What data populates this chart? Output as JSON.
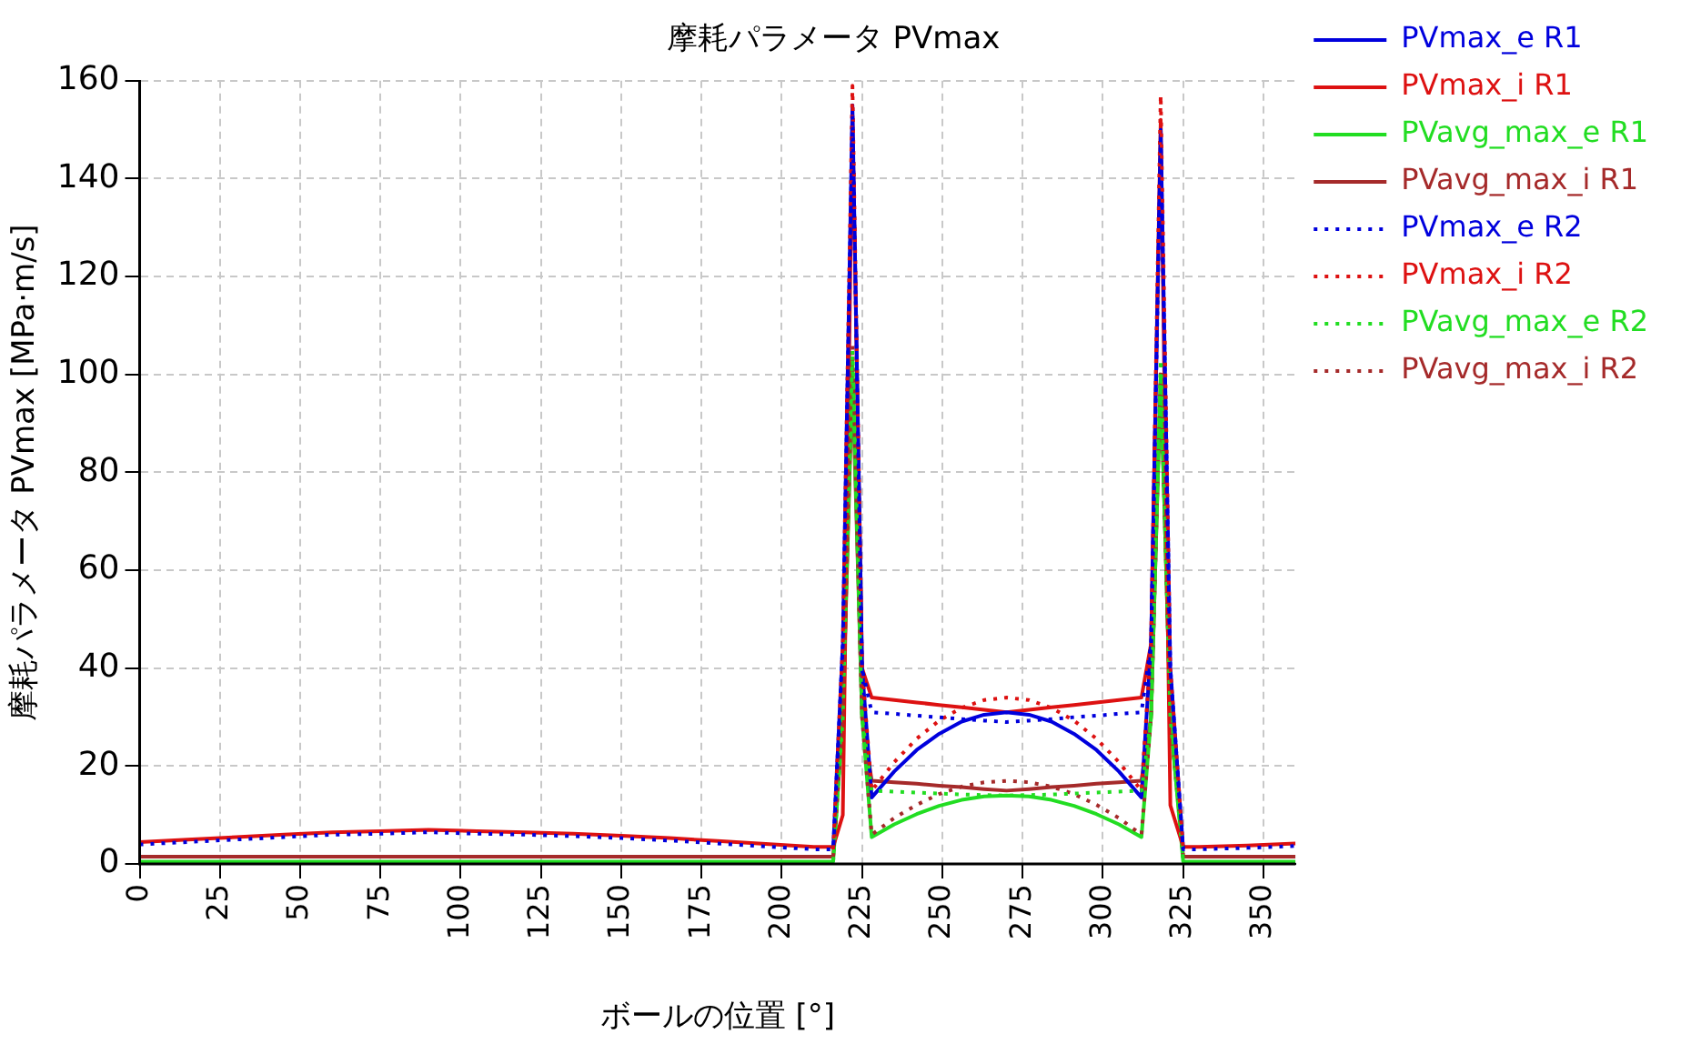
{
  "chart_data": {
    "type": "line",
    "title": "摩耗パラメータ PVmax",
    "xlabel": "ボールの位置 [°]",
    "ylabel": "摩耗パラメータ PVmax [MPa·m/s]",
    "x": [
      0,
      15,
      30,
      45,
      60,
      75,
      90,
      105,
      120,
      135,
      150,
      165,
      180,
      195,
      210,
      216,
      219,
      222,
      225,
      228,
      235,
      242,
      249,
      256,
      263,
      270,
      277,
      284,
      291,
      298,
      305,
      312,
      315,
      318,
      321,
      325,
      330,
      345,
      360
    ],
    "xlim": [
      0,
      360
    ],
    "xticks": [
      0,
      25,
      50,
      75,
      100,
      125,
      150,
      175,
      200,
      225,
      250,
      275,
      300,
      325,
      350
    ],
    "ylim": [
      0,
      160
    ],
    "yticks": [
      0,
      20,
      40,
      60,
      80,
      100,
      120,
      140,
      160
    ],
    "grid": true,
    "legend": "top right",
    "marker": "none",
    "series": [
      {
        "name": "PVmax_e R1",
        "color": "#0000dd",
        "line_style": "solid",
        "values": [
          null,
          null,
          null,
          null,
          null,
          null,
          null,
          null,
          null,
          null,
          null,
          null,
          null,
          null,
          null,
          3,
          45,
          155,
          40,
          13.6,
          18.9,
          23.3,
          26.6,
          29.1,
          30.5,
          31,
          30.5,
          29.1,
          26.6,
          23.3,
          18.9,
          13.6,
          45,
          150,
          40,
          3,
          null,
          null,
          null
        ]
      },
      {
        "name": "PVmax_i R1",
        "color": "#dd1111",
        "line_style": "solid",
        "values": [
          4.5,
          5,
          5.5,
          6,
          6.5,
          6.7,
          7,
          6.7,
          6.5,
          6.2,
          5.8,
          5.3,
          4.7,
          4.1,
          3.5,
          3.5,
          10,
          153,
          40,
          34,
          33.5,
          33,
          32.5,
          32,
          31.5,
          31,
          31.5,
          32,
          32.5,
          33,
          33.5,
          34,
          45,
          152,
          12,
          3.5,
          3.5,
          3.8,
          4.2
        ]
      },
      {
        "name": "PVavg_max_e R1",
        "color": "#22dd22",
        "line_style": "solid",
        "values": [
          0.5,
          0.5,
          0.5,
          0.5,
          0.5,
          0.5,
          0.5,
          0.5,
          0.5,
          0.5,
          0.5,
          0.5,
          0.5,
          0.5,
          0.5,
          0.5,
          30,
          103,
          30,
          5.5,
          8.1,
          10.2,
          11.9,
          13.1,
          13.8,
          14,
          13.8,
          13.1,
          11.9,
          10.2,
          8.1,
          5.5,
          30,
          100,
          30,
          0.5,
          0.5,
          0.5,
          0.5
        ]
      },
      {
        "name": "PVavg_max_i R1",
        "color": "#a52a2a",
        "line_style": "solid",
        "values": [
          1.5,
          1.5,
          1.5,
          1.5,
          1.5,
          1.5,
          1.5,
          1.5,
          1.5,
          1.5,
          1.5,
          1.5,
          1.5,
          1.5,
          1.5,
          1.5,
          30,
          100,
          30,
          17,
          16.7,
          16.4,
          16,
          15.7,
          15.3,
          15,
          15.3,
          15.7,
          16,
          16.4,
          16.7,
          17,
          30,
          100,
          30,
          1.5,
          1.5,
          1.5,
          1.5
        ]
      },
      {
        "name": "PVmax_e R2",
        "color": "#0000dd",
        "line_style": "dotted",
        "values": [
          4,
          4.5,
          5,
          5.5,
          6,
          6.2,
          6.5,
          6.2,
          6,
          5.7,
          5.3,
          4.8,
          4.2,
          3.6,
          3,
          3,
          45,
          153,
          40,
          31,
          30.7,
          30.3,
          30,
          29.6,
          29.3,
          29,
          29.3,
          29.6,
          30,
          30.3,
          30.7,
          31,
          45,
          148,
          40,
          3,
          3,
          3.3,
          3.7
        ]
      },
      {
        "name": "PVmax_i R2",
        "color": "#dd1111",
        "line_style": "dotted",
        "values": [
          null,
          null,
          null,
          null,
          null,
          null,
          null,
          null,
          null,
          null,
          null,
          null,
          null,
          null,
          null,
          3,
          45,
          159,
          40,
          15,
          20.8,
          25.6,
          29.3,
          31.9,
          33.5,
          34,
          33.5,
          31.9,
          29.3,
          25.6,
          20.8,
          15,
          45,
          157,
          40,
          3,
          null,
          null,
          null
        ]
      },
      {
        "name": "PVavg_max_e R2",
        "color": "#22dd22",
        "line_style": "dotted",
        "values": [
          null,
          null,
          null,
          null,
          null,
          null,
          null,
          null,
          null,
          null,
          null,
          null,
          null,
          null,
          null,
          0.5,
          30,
          105,
          30,
          15,
          14.8,
          14.6,
          14.4,
          14.2,
          14.1,
          14,
          14.1,
          14.2,
          14.4,
          14.6,
          14.8,
          15,
          30,
          103,
          30,
          0.5,
          null,
          null,
          null
        ]
      },
      {
        "name": "PVavg_max_i R2",
        "color": "#a52a2a",
        "line_style": "dotted",
        "values": [
          null,
          null,
          null,
          null,
          null,
          null,
          null,
          null,
          null,
          null,
          null,
          null,
          null,
          null,
          null,
          1.5,
          30,
          106,
          30,
          6,
          9.4,
          12.1,
          14.3,
          15.8,
          16.7,
          17,
          16.7,
          15.8,
          14.3,
          12.1,
          9.4,
          6,
          30,
          101,
          30,
          1.5,
          null,
          null,
          null
        ]
      }
    ]
  }
}
